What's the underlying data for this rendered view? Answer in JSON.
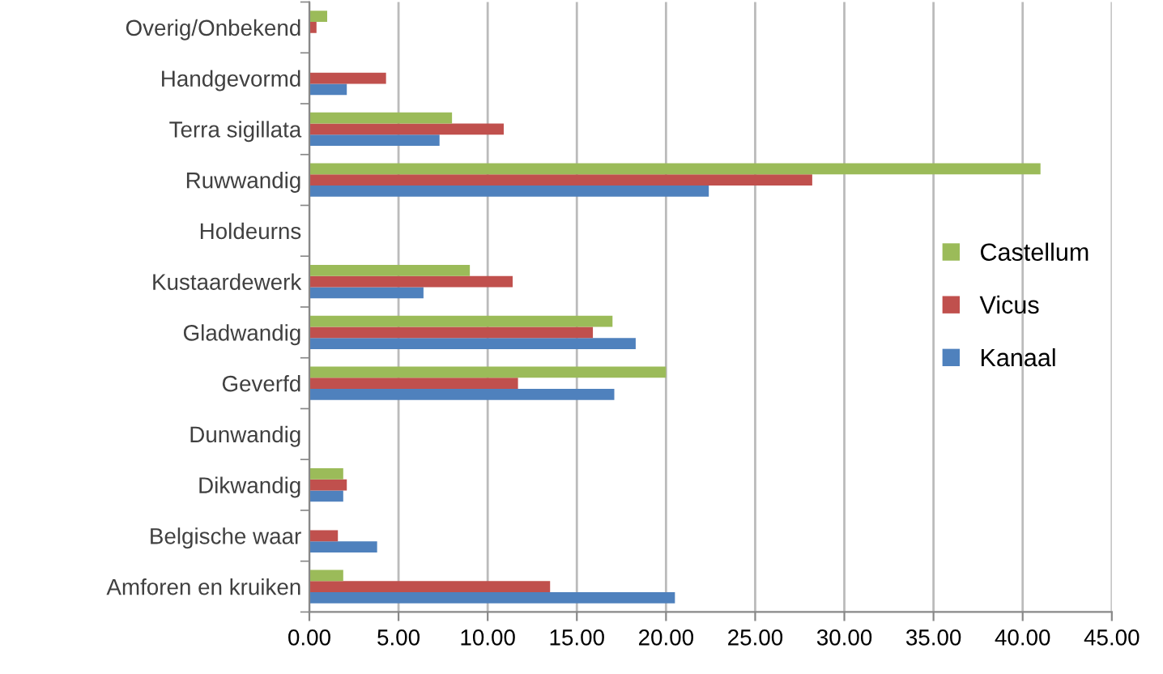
{
  "chart_data": {
    "type": "bar",
    "orientation": "horizontal",
    "categories": [
      "Overig/Onbekend",
      "Handgevormd",
      "Terra sigillata",
      "Ruwwandig",
      "Holdeurns",
      "Kustaardewerk",
      "Gladwandig",
      "Geverfd",
      "Dunwandig",
      "Dikwandig",
      "Belgische waar",
      "Amforen en kruiken"
    ],
    "series": [
      {
        "name": "Kanaal",
        "color": "#4f81bd",
        "values": [
          0,
          2.1,
          7.3,
          22.4,
          0,
          6.4,
          18.3,
          17.1,
          0,
          1.9,
          3.8,
          20.5
        ]
      },
      {
        "name": "Vicus",
        "color": "#c0504d",
        "values": [
          0.4,
          4.3,
          10.9,
          28.2,
          0,
          11.4,
          15.9,
          11.7,
          0,
          2.1,
          1.6,
          13.5
        ]
      },
      {
        "name": "Castellum",
        "color": "#9bbb59",
        "values": [
          1.0,
          0,
          8.0,
          41.0,
          0,
          9.0,
          17.0,
          20.0,
          0,
          1.9,
          0,
          1.9
        ]
      }
    ],
    "xlim": [
      0,
      45
    ],
    "xticks": [
      {
        "value": 0,
        "label": "0.00"
      },
      {
        "value": 5,
        "label": "5.00"
      },
      {
        "value": 10,
        "label": "10.00"
      },
      {
        "value": 15,
        "label": "15.00"
      },
      {
        "value": 20,
        "label": "20.00"
      },
      {
        "value": 25,
        "label": "25.00"
      },
      {
        "value": 30,
        "label": "30.00"
      },
      {
        "value": 35,
        "label": "35.00"
      },
      {
        "value": 40,
        "label": "40.00"
      },
      {
        "value": 45,
        "label": "45.00"
      }
    ],
    "grid": "x",
    "legend": "right"
  }
}
